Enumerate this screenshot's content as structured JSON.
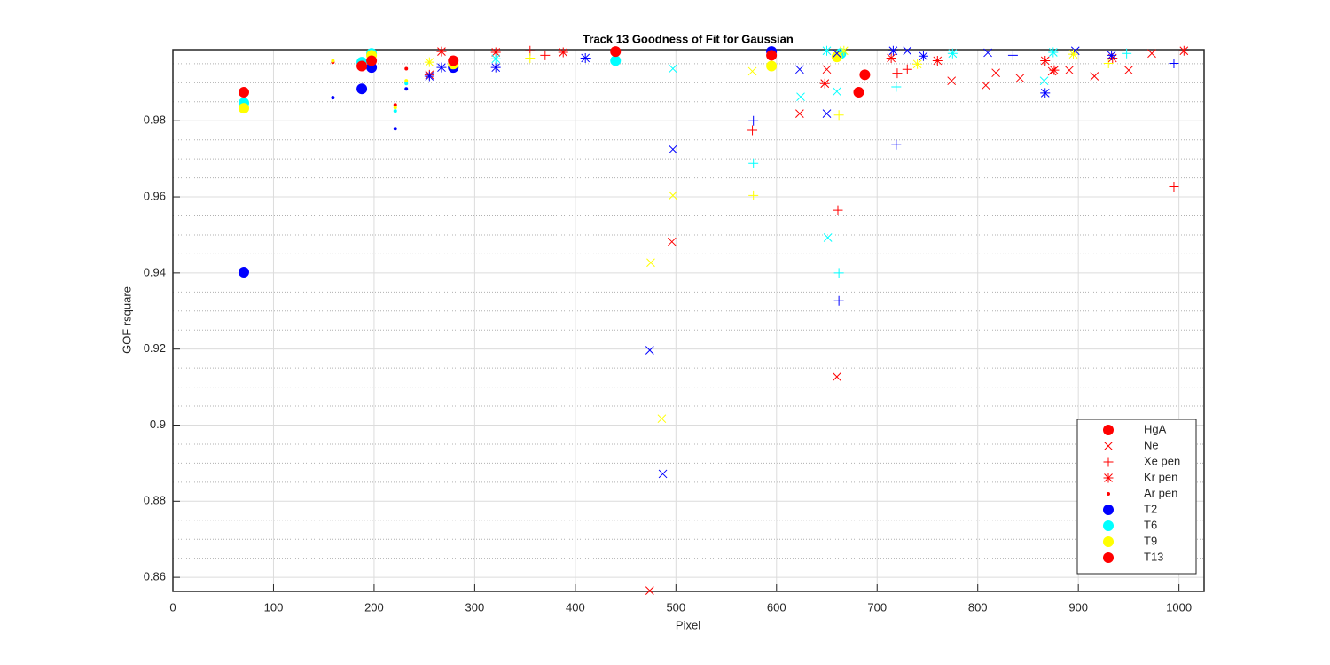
{
  "chart_data": {
    "type": "scatter",
    "title": "Track 13  Goodness of Fit for Gaussian",
    "x_label": "Pixel",
    "y_label": "GOF rsquare",
    "xlim": [
      0,
      1025
    ],
    "ylim": [
      0.8563,
      0.9987
    ],
    "xticks": [
      0,
      100,
      200,
      300,
      400,
      500,
      600,
      700,
      800,
      900,
      1000
    ],
    "yticks": [
      0.86,
      0.88,
      0.9,
      0.92,
      0.94,
      0.96,
      0.98
    ],
    "yminorticks": [
      0.865,
      0.87,
      0.875,
      0.885,
      0.89,
      0.895,
      0.905,
      0.91,
      0.915,
      0.925,
      0.93,
      0.935,
      0.945,
      0.95,
      0.955,
      0.965,
      0.97,
      0.975,
      0.985,
      0.99,
      0.995
    ],
    "grid": true,
    "legend_position": "lower right",
    "legend": [
      {
        "label": "HgA",
        "marker": "o",
        "color": "#ff0000"
      },
      {
        "label": "Ne",
        "marker": "x",
        "color": "#ff0000"
      },
      {
        "label": "Xe pen",
        "marker": "+",
        "color": "#ff0000"
      },
      {
        "label": "Kr pen",
        "marker": "*",
        "color": "#ff0000"
      },
      {
        "label": "Ar pen",
        "marker": ".",
        "color": "#ff0000"
      },
      {
        "label": "T2",
        "marker": "o",
        "color": "#0000ff"
      },
      {
        "label": "T6",
        "marker": "o",
        "color": "#00ffff"
      },
      {
        "label": "T9",
        "marker": "o",
        "color": "#ffff00"
      },
      {
        "label": "T13",
        "marker": "o",
        "color": "#ff0000"
      }
    ],
    "series": [
      {
        "marker": "o",
        "color": "#0000ff",
        "x": [
          70.5,
          187.8,
          197.5,
          278.7,
          595
        ],
        "y": [
          0.9402,
          0.9884,
          0.994,
          0.994,
          0.9982
        ]
      },
      {
        "marker": "o",
        "color": "#00ffff",
        "x": [
          70.5,
          187.8,
          197.5,
          440,
          664
        ],
        "y": [
          0.9847,
          0.9954,
          0.9977,
          0.9958,
          0.9977
        ]
      },
      {
        "marker": "o",
        "color": "#ffff00",
        "x": [
          70.5,
          197.5,
          278.7,
          595,
          660
        ],
        "y": [
          0.9833,
          0.9972,
          0.9949,
          0.9944,
          0.9968
        ]
      },
      {
        "marker": "o",
        "color": "#ff0000",
        "x": [
          70.5,
          187.8,
          197.5,
          278.7,
          440,
          595,
          681.7,
          687.8
        ],
        "y": [
          0.9875,
          0.9944,
          0.9958,
          0.9958,
          0.9982,
          0.9972,
          0.9875,
          0.9921
        ]
      },
      {
        "marker": "x",
        "color": "#ff0000",
        "x": [
          474,
          496,
          623,
          648,
          650,
          660,
          774,
          808,
          818,
          842,
          874,
          891,
          916,
          950,
          973
        ],
        "y": [
          0.8565,
          0.9482,
          0.9819,
          0.9898,
          0.9935,
          0.9127,
          0.9905,
          0.9893,
          0.9926,
          0.9912,
          0.993,
          0.9933,
          0.9917,
          0.9933,
          0.9977
        ]
      },
      {
        "marker": "x",
        "color": "#0000ff",
        "x": [
          474,
          487,
          497,
          623,
          650,
          660,
          730,
          810,
          897
        ],
        "y": [
          0.9197,
          0.8872,
          0.9725,
          0.9935,
          0.9819,
          0.9977,
          0.9984,
          0.9979,
          0.9984
        ]
      },
      {
        "marker": "x",
        "color": "#00ffff",
        "x": [
          497,
          624,
          651,
          660,
          866
        ],
        "y": [
          0.9937,
          0.9863,
          0.9493,
          0.9877,
          0.9905
        ]
      },
      {
        "marker": "x",
        "color": "#ffff00",
        "x": [
          475,
          486,
          497,
          576
        ],
        "y": [
          0.9427,
          0.9017,
          0.9604,
          0.993
        ]
      },
      {
        "marker": "+",
        "color": "#ff0000",
        "x": [
          576,
          661,
          720,
          730,
          995,
          355,
          370
        ],
        "y": [
          0.9775,
          0.9565,
          0.9925,
          0.9935,
          0.9627,
          0.9984,
          0.9972
        ]
      },
      {
        "marker": "+",
        "color": "#0000ff",
        "x": [
          577,
          662,
          719,
          835,
          995
        ],
        "y": [
          0.98,
          0.9327,
          0.9737,
          0.9972,
          0.9951
        ]
      },
      {
        "marker": "+",
        "color": "#00ffff",
        "x": [
          577,
          662,
          719,
          948
        ],
        "y": [
          0.9688,
          0.94,
          0.9889,
          0.9977
        ]
      },
      {
        "marker": "+",
        "color": "#ffff00",
        "x": [
          577,
          662,
          355,
          930
        ],
        "y": [
          0.9604,
          0.9815,
          0.9965,
          0.9951
        ]
      },
      {
        "marker": "*",
        "color": "#ff0000",
        "x": [
          255,
          267,
          321,
          388,
          648,
          714,
          760,
          867,
          876,
          934,
          1005
        ],
        "y": [
          0.9921,
          0.9982,
          0.998,
          0.998,
          0.9898,
          0.9965,
          0.9958,
          0.9958,
          0.9933,
          0.9965,
          0.9984
        ]
      },
      {
        "marker": "*",
        "color": "#0000ff",
        "x": [
          255,
          267,
          321,
          410,
          716,
          746,
          867,
          933
        ],
        "y": [
          0.9917,
          0.994,
          0.994,
          0.9965,
          0.9984,
          0.997,
          0.9873,
          0.9972
        ]
      },
      {
        "marker": "*",
        "color": "#00ffff",
        "x": [
          321,
          650,
          775,
          875
        ],
        "y": [
          0.9963,
          0.9984,
          0.9977,
          0.998
        ]
      },
      {
        "marker": "*",
        "color": "#ffff00",
        "x": [
          255,
          667,
          740,
          895
        ],
        "y": [
          0.9954,
          0.9984,
          0.9949,
          0.9975
        ]
      },
      {
        "marker": ".",
        "color": "#ff0000",
        "x": [
          159,
          221,
          232
        ],
        "y": [
          0.9954,
          0.9842,
          0.9937
        ]
      },
      {
        "marker": ".",
        "color": "#0000ff",
        "x": [
          159,
          221,
          232
        ],
        "y": [
          0.9861,
          0.9779,
          0.9884
        ]
      },
      {
        "marker": ".",
        "color": "#00ffff",
        "x": [
          221,
          232
        ],
        "y": [
          0.9826,
          0.9898
        ]
      },
      {
        "marker": ".",
        "color": "#ffff00",
        "x": [
          159,
          221,
          232
        ],
        "y": [
          0.9958,
          0.9835,
          0.9905
        ]
      }
    ]
  }
}
